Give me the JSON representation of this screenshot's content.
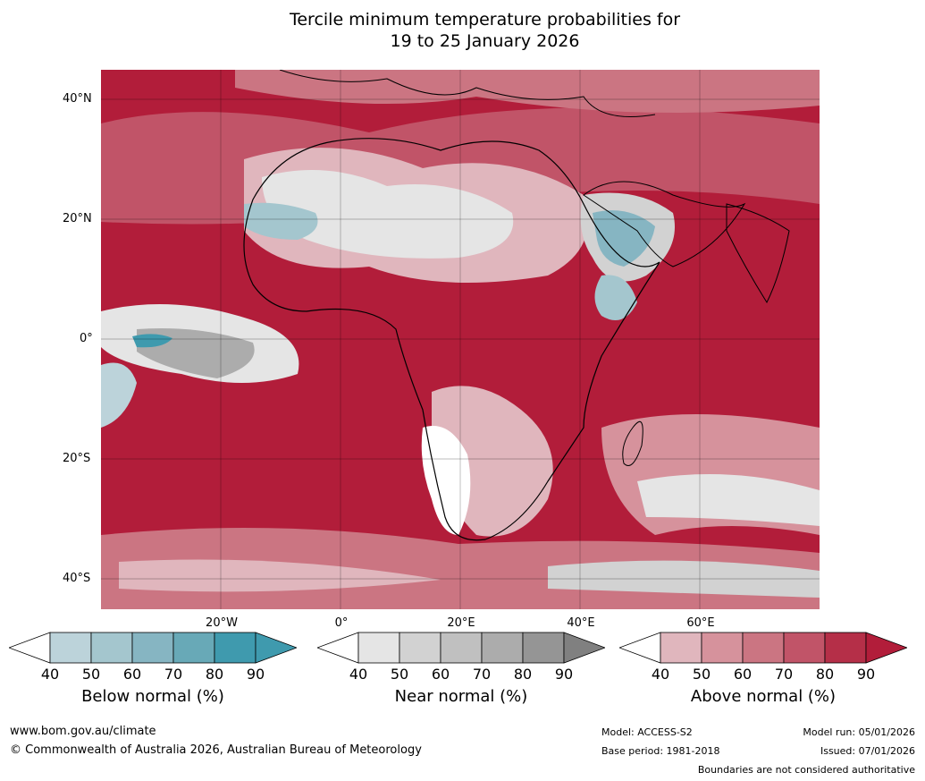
{
  "title": {
    "line1": "Tercile minimum temperature probabilities for",
    "line2": "19 to 25 January 2026"
  },
  "map": {
    "lat_labels": [
      "40°N",
      "20°N",
      "0°",
      "20°S",
      "40°S"
    ],
    "lon_labels": [
      "20°W",
      "0°",
      "20°E",
      "40°E",
      "60°E"
    ]
  },
  "legend": {
    "ticks": [
      "40",
      "50",
      "60",
      "70",
      "80",
      "90"
    ],
    "below": {
      "label": "Below normal (%)",
      "colors": [
        "#ffffff",
        "#bcd3da",
        "#a4c6ce",
        "#86b5c2",
        "#68a9b7",
        "#3f9aae"
      ]
    },
    "near": {
      "label": "Near normal (%)",
      "colors": [
        "#ffffff",
        "#e5e5e5",
        "#d2d2d2",
        "#c0c0c0",
        "#acacac",
        "#959595"
      ]
    },
    "above": {
      "label": "Above normal (%)",
      "colors": [
        "#ffffff",
        "#e0b6bd",
        "#d6929c",
        "#cb7582",
        "#c15468",
        "#b52f48"
      ]
    },
    "end_colors": {
      "below": "#3f9aae",
      "near": "#808080",
      "above": "#b21d3a"
    }
  },
  "footer": {
    "website": "www.bom.gov.au/climate",
    "copyright": "© Commonwealth of Australia 2026, Australian Bureau of Meteorology",
    "model": "Model: ACCESS-S2",
    "base_period": "Base period: 1981-2018",
    "model_run": "Model run: 05/01/2026",
    "issued": "Issued: 07/01/2026",
    "disclaimer": "Boundaries are not considered authoritative"
  }
}
